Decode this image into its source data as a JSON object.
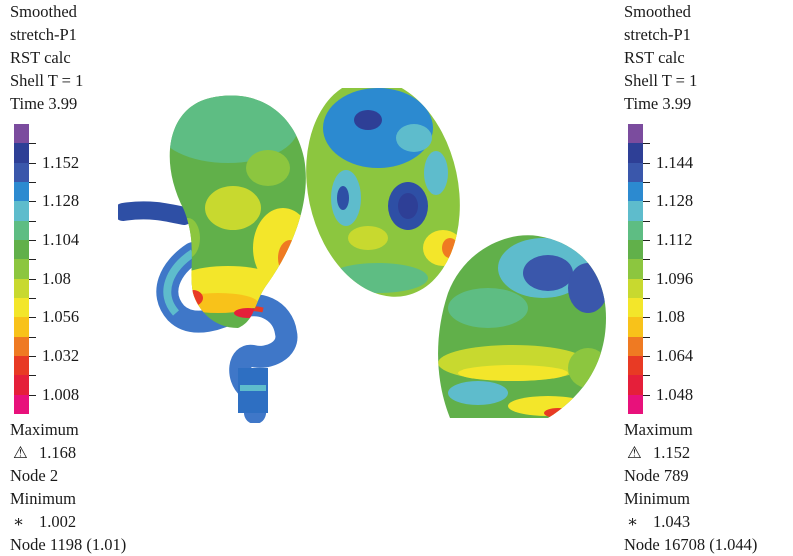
{
  "left_panel": {
    "header": [
      "Smoothed",
      "stretch-P1",
      "RST calc",
      "Shell T = 1",
      "Time 3.99"
    ],
    "scale_colors": [
      "#7b4c9e",
      "#2e3f96",
      "#3a57ab",
      "#2c8ad0",
      "#5ebccc",
      "#5ebd83",
      "#61b04a",
      "#8cc63f",
      "#c8d92f",
      "#f3e62a",
      "#f8c21a",
      "#ef7a22",
      "#e83a24",
      "#e51f3a",
      "#e8117b"
    ],
    "tick_labels": [
      "1.152",
      "1.128",
      "1.104",
      "1.08",
      "1.056",
      "1.032",
      "1.008"
    ],
    "max_label": "Maximum",
    "max_symbol": "⚠",
    "max_value": "1.168",
    "max_node": "Node 2",
    "min_label": "Minimum",
    "min_symbol": "∗",
    "min_value": "1.002",
    "min_node": "Node 1198 (1.01)"
  },
  "right_panel": {
    "header": [
      "Smoothed",
      "stretch-P1",
      "RST calc",
      "Shell T = 1",
      "Time 3.99"
    ],
    "scale_colors": [
      "#7b4c9e",
      "#2e3f96",
      "#3a57ab",
      "#2c8ad0",
      "#5ebccc",
      "#5ebd83",
      "#61b04a",
      "#8cc63f",
      "#c8d92f",
      "#f3e62a",
      "#f8c21a",
      "#ef7a22",
      "#e83a24",
      "#e51f3a",
      "#e8117b"
    ],
    "tick_labels": [
      "1.144",
      "1.128",
      "1.112",
      "1.096",
      "1.08",
      "1.064",
      "1.048"
    ],
    "max_label": "Maximum",
    "max_symbol": "⚠",
    "max_value": "1.152",
    "max_node": "Node 789",
    "min_label": "Minimum",
    "min_symbol": "∗",
    "min_value": "1.043",
    "min_node": "Node 16708 (1.044)"
  }
}
